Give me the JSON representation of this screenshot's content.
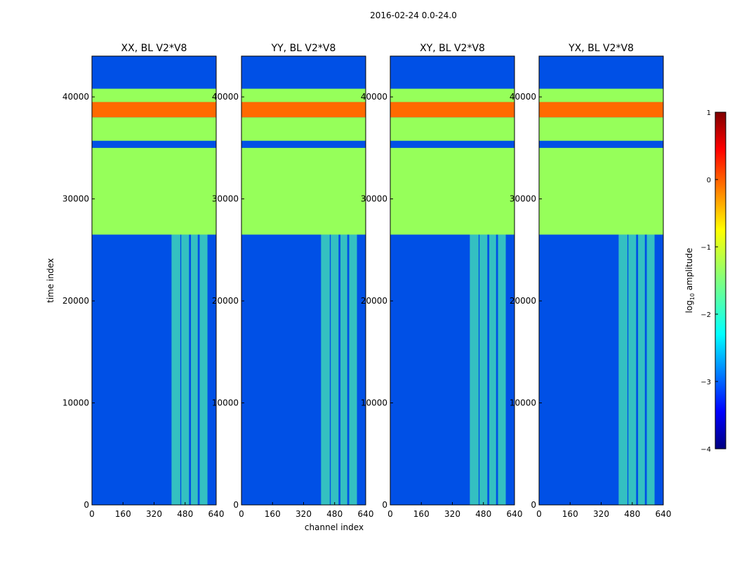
{
  "figure": {
    "suptitle": "2016-02-24 0.0-24.0",
    "xlabel": "channel index",
    "ylabel": "time index"
  },
  "colors": {
    "flagged_green": "#96ff5a",
    "flagged_orange": "#ff6a00",
    "noise_blue": "#0050e6",
    "axes_frame": "#000000"
  },
  "chart_data": [
    {
      "type": "heatmap",
      "title": "XX, BL V2*V8",
      "x_range": [
        0,
        640
      ],
      "y_range": [
        0,
        44000
      ],
      "x_ticks": [
        "0",
        "160",
        "320",
        "480",
        "640"
      ],
      "y_ticks": [
        "0",
        "10000",
        "20000",
        "30000",
        "40000"
      ],
      "flagged_bands": [
        {
          "t0": 26500,
          "t1": 35000,
          "level": "green"
        },
        {
          "t0": 35700,
          "t1": 38000,
          "level": "green"
        },
        {
          "t0": 38000,
          "t1": 39500,
          "level": "orange"
        },
        {
          "t0": 39500,
          "t1": 40800,
          "level": "green"
        }
      ],
      "rfi_channels": [
        [
          410,
          455
        ],
        [
          460,
          500
        ],
        [
          510,
          545
        ],
        [
          555,
          595
        ]
      ]
    },
    {
      "type": "heatmap",
      "title": "YY, BL V2*V8",
      "x_range": [
        0,
        640
      ],
      "y_range": [
        0,
        44000
      ],
      "x_ticks": [
        "0",
        "160",
        "320",
        "480",
        "640"
      ],
      "y_ticks": [
        "0",
        "10000",
        "20000",
        "30000",
        "40000"
      ],
      "flagged_bands": [
        {
          "t0": 26500,
          "t1": 35000,
          "level": "green"
        },
        {
          "t0": 35700,
          "t1": 38000,
          "level": "green"
        },
        {
          "t0": 38000,
          "t1": 39500,
          "level": "orange"
        },
        {
          "t0": 39500,
          "t1": 40800,
          "level": "green"
        }
      ],
      "rfi_channels": [
        [
          410,
          455
        ],
        [
          460,
          500
        ],
        [
          510,
          545
        ],
        [
          555,
          595
        ]
      ]
    },
    {
      "type": "heatmap",
      "title": "XY, BL V2*V8",
      "x_range": [
        0,
        640
      ],
      "y_range": [
        0,
        44000
      ],
      "x_ticks": [
        "0",
        "160",
        "320",
        "480",
        "640"
      ],
      "y_ticks": [
        "0",
        "10000",
        "20000",
        "30000",
        "40000"
      ],
      "flagged_bands": [
        {
          "t0": 26500,
          "t1": 35000,
          "level": "green"
        },
        {
          "t0": 35700,
          "t1": 38000,
          "level": "green"
        },
        {
          "t0": 38000,
          "t1": 39500,
          "level": "orange"
        },
        {
          "t0": 39500,
          "t1": 40800,
          "level": "green"
        }
      ],
      "rfi_channels": [
        [
          410,
          455
        ],
        [
          460,
          500
        ],
        [
          510,
          545
        ],
        [
          555,
          595
        ]
      ]
    },
    {
      "type": "heatmap",
      "title": "YX, BL V2*V8",
      "x_range": [
        0,
        640
      ],
      "y_range": [
        0,
        44000
      ],
      "x_ticks": [
        "0",
        "160",
        "320",
        "480",
        "640"
      ],
      "y_ticks": [
        "0",
        "10000",
        "20000",
        "30000",
        "40000"
      ],
      "flagged_bands": [
        {
          "t0": 26500,
          "t1": 35000,
          "level": "green"
        },
        {
          "t0": 35700,
          "t1": 38000,
          "level": "green"
        },
        {
          "t0": 38000,
          "t1": 39500,
          "level": "orange"
        },
        {
          "t0": 39500,
          "t1": 40800,
          "level": "green"
        }
      ],
      "rfi_channels": [
        [
          410,
          455
        ],
        [
          460,
          500
        ],
        [
          510,
          545
        ],
        [
          555,
          595
        ]
      ]
    }
  ],
  "colorbar": {
    "label": "log10 amplitude",
    "label_main": "log",
    "label_sub": "10",
    "label_rest": " amplitude",
    "range": [
      -4,
      1
    ],
    "ticks": [
      "1",
      "0",
      "−1",
      "−2",
      "−3",
      "−4"
    ],
    "tick_values": [
      1,
      0,
      -1,
      -2,
      -3,
      -4
    ],
    "colormap": "jet"
  }
}
